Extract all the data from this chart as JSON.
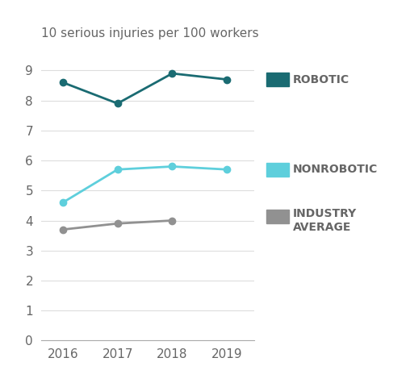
{
  "years": [
    2016,
    2017,
    2018,
    2019
  ],
  "robotic": [
    8.6,
    7.9,
    8.9,
    8.7
  ],
  "nonrobotic": [
    4.6,
    5.7,
    5.8,
    5.7
  ],
  "industry_avg": [
    3.7,
    3.9,
    4.0,
    null
  ],
  "robotic_color": "#1a6b72",
  "nonrobotic_color": "#5ecfdc",
  "industry_color": "#919191",
  "ylabel": "10 serious injuries per 100 workers",
  "ylim": [
    0,
    9.8
  ],
  "yticks": [
    0,
    1,
    2,
    3,
    4,
    5,
    6,
    7,
    8,
    9
  ],
  "legend_robotic": "ROBOTIC",
  "legend_nonrobotic": "NONROBOTIC",
  "legend_industry_line1": "INDUSTRY",
  "legend_industry_line2": "AVERAGE",
  "background_color": "#ffffff",
  "grid_color": "#dddddd",
  "label_fontsize": 11,
  "tick_fontsize": 11,
  "legend_fontsize": 10,
  "text_color": "#666666"
}
